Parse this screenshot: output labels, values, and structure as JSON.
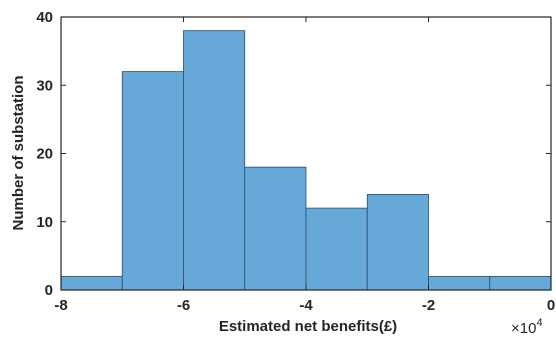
{
  "chart_data": {
    "type": "bar",
    "subtype": "histogram",
    "bin_edges": [
      -80000,
      -70000,
      -60000,
      -50000,
      -40000,
      -30000,
      -20000,
      -10000,
      0
    ],
    "values": [
      2,
      32,
      38,
      18,
      12,
      14,
      2,
      2
    ],
    "xlabel": "Estimated net benefits(£)",
    "ylabel": "Number of substation",
    "xlim": [
      -80000,
      0
    ],
    "ylim": [
      0,
      40
    ],
    "x_tick_values": [
      -8,
      -6,
      -4,
      -2,
      0
    ],
    "x_tick_labels": [
      "-8",
      "-6",
      "-4",
      "-2",
      "0"
    ],
    "y_tick_values": [
      0,
      10,
      20,
      30,
      40
    ],
    "y_tick_labels": [
      "0",
      "10",
      "20",
      "30",
      "40"
    ],
    "x_exponent_label": {
      "base": "×10",
      "power": "4"
    },
    "grid": false,
    "colors": {
      "bar_fill": "#66A8D8",
      "bar_edge": "#2E4E6A",
      "axis": "#262626"
    }
  }
}
